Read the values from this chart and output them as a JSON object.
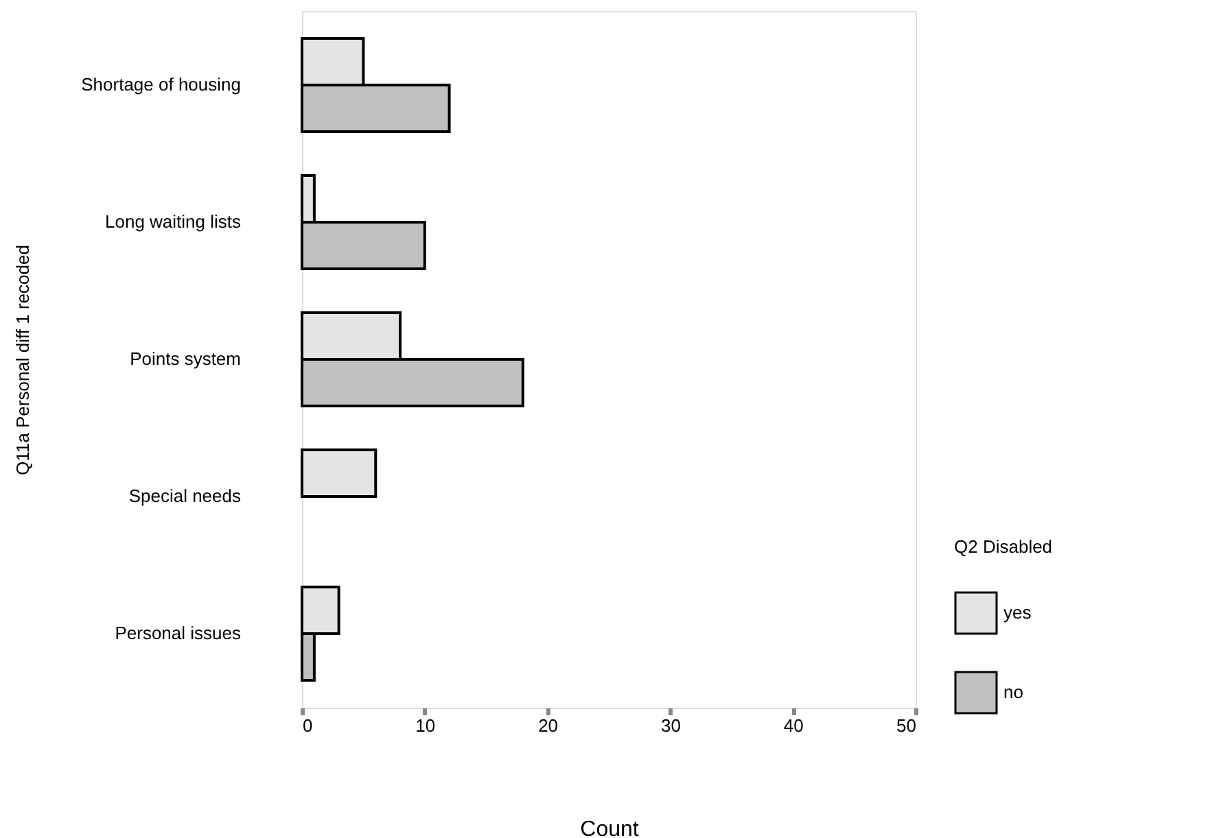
{
  "chart_data": {
    "type": "bar",
    "orientation": "horizontal",
    "xlabel": "Count",
    "ylabel": "Q11a Personal diff 1 recoded",
    "legend_title": "Q2 Disabled",
    "categories": [
      "Shortage of housing",
      "Long waiting lists",
      "Points system",
      "Special needs",
      "Personal issues"
    ],
    "series": [
      {
        "name": "yes",
        "color": "#e4e4e4",
        "values": [
          5,
          1,
          8,
          6,
          3
        ]
      },
      {
        "name": "no",
        "color": "#c0c0c0",
        "values": [
          12,
          10,
          18,
          null,
          1
        ]
      }
    ],
    "xlim": [
      0,
      50
    ],
    "xticks": [
      0,
      10,
      20,
      30,
      40,
      50
    ],
    "grid": false,
    "legend": "bottom right"
  }
}
